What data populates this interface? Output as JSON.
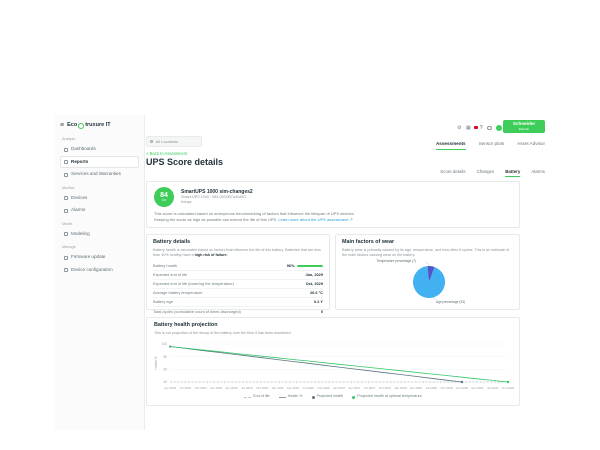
{
  "app": {
    "logo_part1": "Eco",
    "logo_part2": "truxure IT"
  },
  "brand": {
    "line1": "Schneider",
    "line2": "Electric"
  },
  "sidebar": {
    "sections": [
      {
        "label": "Analyze",
        "items": [
          {
            "label": "Dashboards"
          },
          {
            "label": "Reports"
          },
          {
            "label": "Services and Warranties"
          }
        ]
      },
      {
        "label": "Monitor",
        "items": [
          {
            "label": "Devices"
          },
          {
            "label": "Alarms"
          }
        ]
      },
      {
        "label": "Model",
        "items": [
          {
            "label": "Modeling"
          }
        ]
      },
      {
        "label": "Manage",
        "items": [
          {
            "label": "Firmware update"
          },
          {
            "label": "Device configuration"
          }
        ]
      }
    ]
  },
  "header": {
    "location_selector": "All Locations",
    "tabs": [
      {
        "label": "Assessments"
      },
      {
        "label": "Sensor plots"
      },
      {
        "label": "Asset Advisor"
      }
    ]
  },
  "page": {
    "back_link": "< Back to Assessment",
    "title": "UPS Score details",
    "subtabs": [
      {
        "label": "Score details"
      },
      {
        "label": "Changes"
      },
      {
        "label": "Battery"
      },
      {
        "label": "Alarms"
      }
    ]
  },
  "score_card": {
    "score": "84",
    "score_max": "100",
    "device_name": "SmartUPS 1000 sim-changes2",
    "device_meta": "Smart-UPS 1000 · 084-00C0B7A40AE3",
    "device_location": "Kenya",
    "description_line1": "This score is calculated based on anonymous benchmarking of factors that influence the lifespan of UPS devices.",
    "description_line2": "Keeping the score as high as possible can extend the life of this UPS.",
    "learn_more": "Learn more about the UPS assessment ↗"
  },
  "battery_details": {
    "title": "Battery details",
    "description": "Battery health is calculated based on factors that influence the life of this battery. Batteries that are less than 40% healthy have a ",
    "description_bold": "high risk of failure.",
    "rows": [
      {
        "label": "Battery health",
        "value": "96%"
      },
      {
        "label": "Expected end of life",
        "value": "Jan, 2029"
      },
      {
        "label": "Expected end of life (lowering the temperature)",
        "value": "Oct, 2029"
      },
      {
        "label": "Average battery temperature",
        "value": "26.6 °C"
      },
      {
        "label": "Battery age",
        "value": "0.2 Y"
      },
      {
        "label": "Total cycles (cumulative count of times discharged)",
        "value": "0"
      }
    ]
  },
  "wear_card": {
    "title": "Main factors of wear",
    "description": "Battery wear is primarily caused by its age, temperature, and how often it cycles. This is an estimate of the main factors causing wear on the battery."
  },
  "projection_card": {
    "title": "Battery health projection",
    "description": "This is our projection of the decay of the battery over the time it has been monitored."
  },
  "chart_data": [
    {
      "type": "pie",
      "title": "Main factors of wear",
      "labels": [
        "Age percentage (93)",
        "Temperature percentage (7)"
      ],
      "values": [
        93,
        7
      ],
      "colors": [
        "#41b1f2",
        "#5352c9"
      ],
      "start_angle": -70
    },
    {
      "type": "line",
      "title": "Battery health projection",
      "ylabel": "Health %",
      "ylim": [
        40,
        100
      ],
      "yticks": [
        100,
        80,
        60,
        40
      ],
      "x": [
        "Apr 2024",
        "Jul 2024",
        "Oct 2024",
        "Jan 2025",
        "Apr 2025",
        "Jul 2025",
        "Oct 2025",
        "Jan 2026",
        "Apr 2026",
        "Jul 2026",
        "Oct 2026",
        "Jan 2027",
        "Apr 2027",
        "Jul 2027",
        "Oct 2027",
        "Jan 2028",
        "Apr 2028",
        "Jul 2028",
        "Oct 2028",
        "Jan 2029",
        "Apr 2029",
        "Jul 2029",
        "Oct 2029"
      ],
      "legend_position": "bottom",
      "series": [
        {
          "name": "End of life",
          "color": "#b4bcc2",
          "dash": true,
          "marker": null,
          "values": [
            40,
            40,
            40,
            40,
            40,
            40,
            40,
            40,
            40,
            40,
            40,
            40,
            40,
            40,
            40,
            40,
            40,
            40,
            40,
            40,
            40,
            40,
            40
          ]
        },
        {
          "name": "Health %",
          "color": "#8d9aa1",
          "dash": false,
          "marker": "start",
          "values": [
            96,
            null,
            null,
            null,
            null,
            null,
            null,
            null,
            null,
            null,
            null,
            null,
            null,
            null,
            null,
            null,
            null,
            null,
            null,
            null,
            null,
            null,
            null
          ]
        },
        {
          "name": "Projected health",
          "color": "#5b7583",
          "dash": false,
          "marker": "end",
          "values": [
            96,
            93.1,
            90.1,
            87.2,
            84.2,
            81.3,
            78.3,
            75.4,
            72.4,
            69.5,
            66.5,
            63.6,
            60.6,
            57.7,
            54.7,
            51.8,
            48.8,
            45.9,
            42.9,
            40,
            null,
            null,
            null
          ]
        },
        {
          "name": "Projected health at optimal temperature",
          "color": "#34c76a",
          "dash": false,
          "marker": "end",
          "values": [
            96,
            93.5,
            90.9,
            88.4,
            85.8,
            83.3,
            80.7,
            78.2,
            75.6,
            73.1,
            70.5,
            68,
            65.5,
            62.9,
            60.4,
            57.8,
            55.3,
            52.7,
            50.2,
            47.6,
            45.1,
            42.5,
            40
          ]
        }
      ]
    }
  ]
}
